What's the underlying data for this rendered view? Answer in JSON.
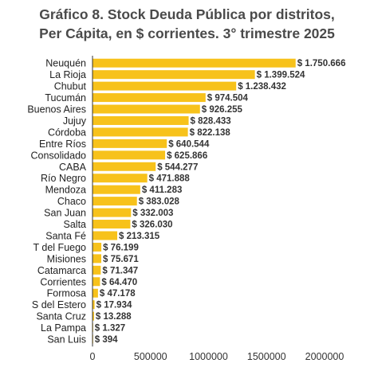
{
  "title_lines": [
    "Gráfico 8. Stock Deuda Pública por distritos,",
    "Per Cápita, en $ corrientes. 3° trimestre 2025"
  ],
  "colors": {
    "bar": "#F7C21B",
    "axis": "#333333"
  },
  "chart_data": {
    "type": "bar",
    "orientation": "horizontal",
    "title": "Gráfico 8. Stock Deuda Pública por distritos, Per Cápita, en $ corrientes. 3° trimestre 2025",
    "categories": [
      "Neuquén",
      "La Rioja",
      "Chubut",
      "Tucumán",
      "Buenos Aires",
      "Jujuy",
      "Córdoba",
      "Entre Ríos",
      "Consolidado",
      "CABA",
      "Río Negro",
      "Mendoza",
      "Chaco",
      "San Juan",
      "Salta",
      "Santa Fé",
      "T del Fuego",
      "Misiones",
      "Catamarca",
      "Corrientes",
      "Formosa",
      "S del Estero",
      "Santa Cruz",
      "La Pampa",
      "San Luis"
    ],
    "values": [
      1750666,
      1399524,
      1238432,
      974504,
      926255,
      828433,
      822138,
      640544,
      625866,
      544277,
      471888,
      411283,
      383028,
      332003,
      326030,
      213315,
      76199,
      75671,
      71347,
      64470,
      47178,
      17934,
      13288,
      1327,
      394
    ],
    "value_labels": [
      "$ 1.750.666",
      "$ 1.399.524",
      "$ 1.238.432",
      "$ 974.504",
      "$ 926.255",
      "$ 828.433",
      "$ 822.138",
      "$ 640.544",
      "$ 625.866",
      "$ 544.277",
      "$ 471.888",
      "$ 411.283",
      "$ 383.028",
      "$ 332.003",
      "$ 326.030",
      "$ 213.315",
      "$ 76.199",
      "$ 75.671",
      "$ 71.347",
      "$ 64.470",
      "$ 47.178",
      "$ 17.934",
      "$ 13.288",
      "$ 1.327",
      "$ 394"
    ],
    "x_ticks": [
      0,
      500000,
      1000000,
      1500000,
      2000000
    ],
    "x_tick_labels": [
      "0",
      "500000",
      "1000000",
      "1500000",
      "2000000"
    ],
    "xlim": [
      0,
      2000000
    ],
    "xlabel": "",
    "ylabel": "",
    "grid": false,
    "legend": "none"
  }
}
